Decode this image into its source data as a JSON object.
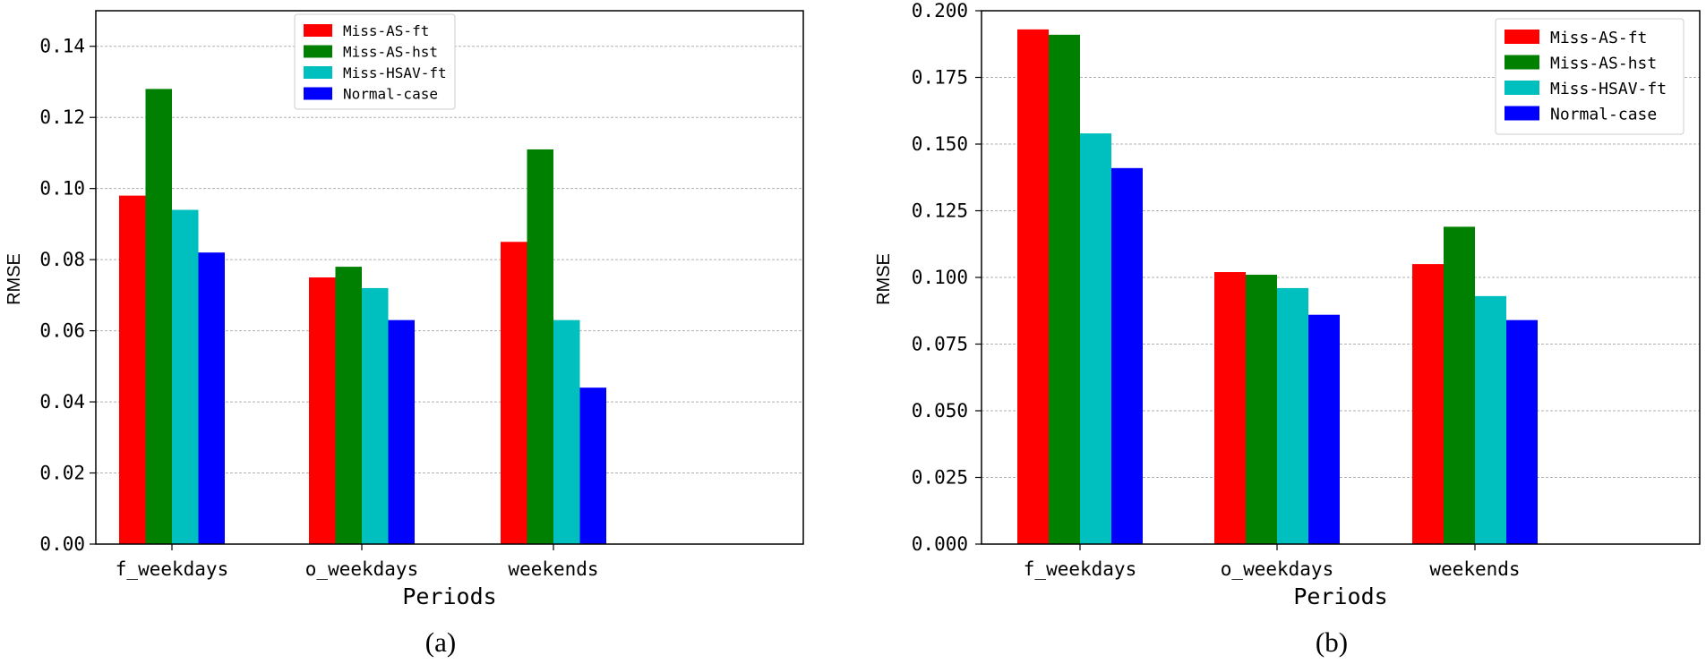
{
  "chart_data": [
    {
      "type": "bar",
      "caption": "(a)",
      "xlabel": "Periods",
      "ylabel": "RMSE",
      "categories": [
        "f_weekdays",
        "o_weekdays",
        "weekends"
      ],
      "ylim": [
        0,
        0.15
      ],
      "yticks": [
        "0.00",
        "0.02",
        "0.04",
        "0.06",
        "0.08",
        "0.10",
        "0.12",
        "0.14"
      ],
      "ytick_values": [
        0,
        0.02,
        0.04,
        0.06,
        0.08,
        0.1,
        0.12,
        0.14
      ],
      "grid": "horizontal-dashed",
      "legend_position": "top-center",
      "series": [
        {
          "name": "Miss-AS-ft",
          "color": "#ff0000",
          "values": [
            0.098,
            0.075,
            0.085
          ]
        },
        {
          "name": "Miss-AS-hst",
          "color": "#008000",
          "values": [
            0.128,
            0.078,
            0.111
          ]
        },
        {
          "name": "Miss-HSAV-ft",
          "color": "#00bfbf",
          "values": [
            0.094,
            0.072,
            0.063
          ]
        },
        {
          "name": "Normal-case",
          "color": "#0000ff",
          "values": [
            0.082,
            0.063,
            0.044
          ]
        }
      ]
    },
    {
      "type": "bar",
      "caption": "(b)",
      "xlabel": "Periods",
      "ylabel": "RMSE",
      "categories": [
        "f_weekdays",
        "o_weekdays",
        "weekends"
      ],
      "ylim": [
        0,
        0.2
      ],
      "yticks": [
        "0.000",
        "0.025",
        "0.050",
        "0.075",
        "0.100",
        "0.125",
        "0.150",
        "0.175",
        "0.200"
      ],
      "ytick_values": [
        0,
        0.025,
        0.05,
        0.075,
        0.1,
        0.125,
        0.15,
        0.175,
        0.2
      ],
      "grid": "horizontal-dashed",
      "legend_position": "top-right",
      "series": [
        {
          "name": "Miss-AS-ft",
          "color": "#ff0000",
          "values": [
            0.193,
            0.102,
            0.105
          ]
        },
        {
          "name": "Miss-AS-hst",
          "color": "#008000",
          "values": [
            0.191,
            0.101,
            0.119
          ]
        },
        {
          "name": "Miss-HSAV-ft",
          "color": "#00bfbf",
          "values": [
            0.154,
            0.096,
            0.093
          ]
        },
        {
          "name": "Normal-case",
          "color": "#0000ff",
          "values": [
            0.141,
            0.086,
            0.084
          ]
        }
      ]
    }
  ]
}
